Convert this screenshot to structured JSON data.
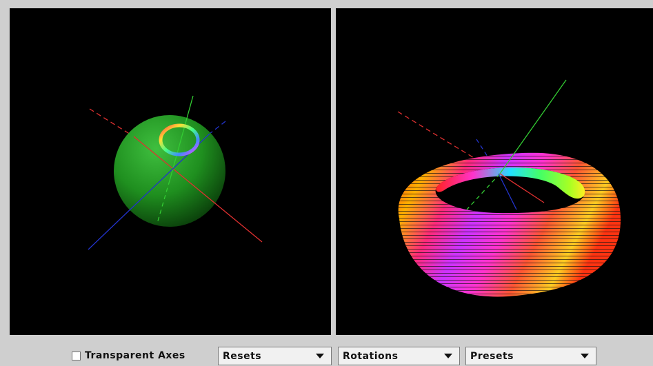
{
  "controls": {
    "transparent_axes_label": "Transparent Axes",
    "transparent_axes_checked": false,
    "resets_value": "Resets",
    "rotations_value": "Rotations",
    "presets_value": "Presets"
  },
  "colors": {
    "background": "#cfcfcf",
    "viewport": "#000000",
    "axis_x": "#e03030",
    "axis_y": "#33cc33",
    "axis_z": "#2233cc",
    "sphere": "#1f9a1f"
  },
  "icons": {
    "dropdown_arrow": "chevron-down-icon",
    "checkbox": "checkbox-icon"
  }
}
